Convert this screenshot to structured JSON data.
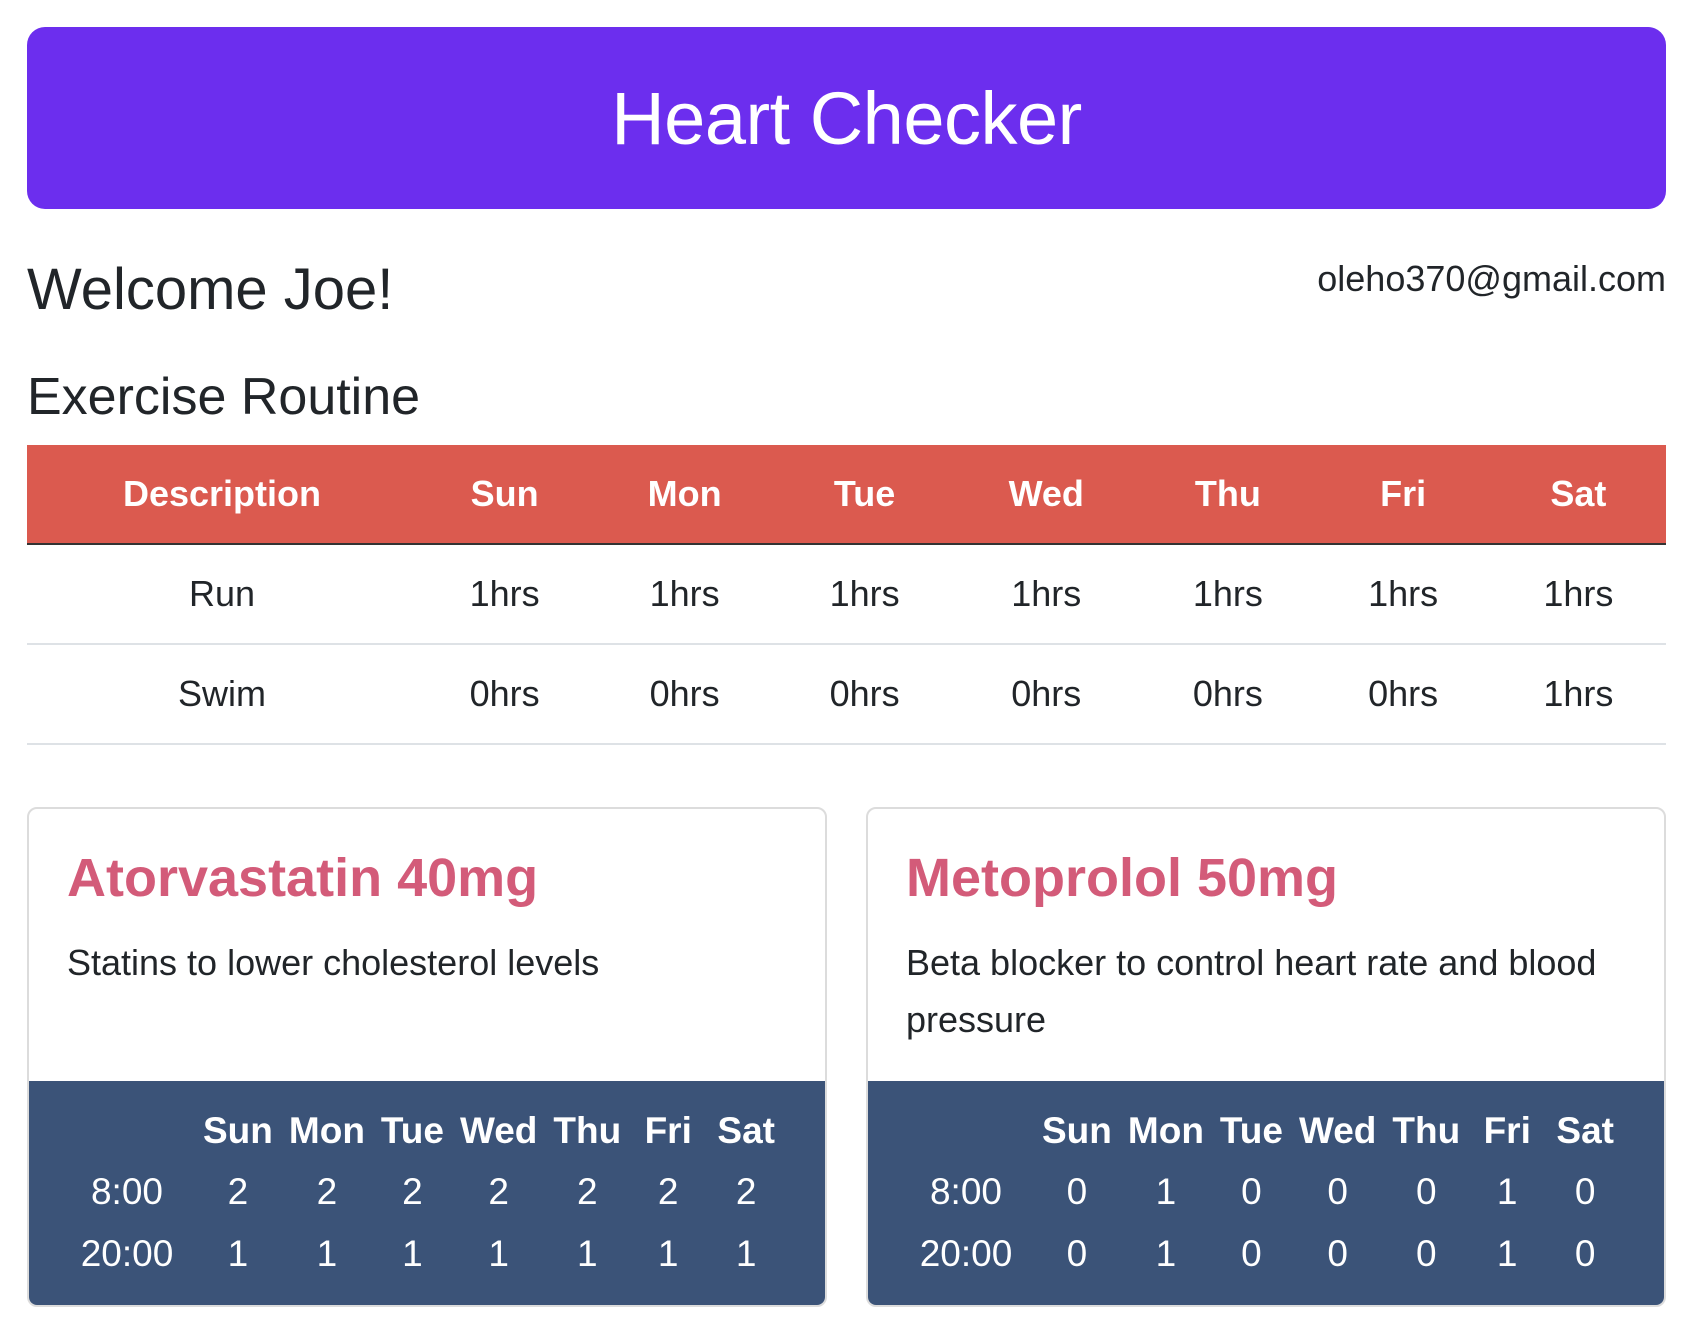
{
  "header": {
    "title": "Heart Checker"
  },
  "user": {
    "welcome": "Welcome Joe!",
    "email": "oleho370@gmail.com"
  },
  "exercise": {
    "title": "Exercise Routine",
    "columns": [
      "Description",
      "Sun",
      "Mon",
      "Tue",
      "Wed",
      "Thu",
      "Fri",
      "Sat"
    ],
    "rows": [
      [
        "Run",
        "1hrs",
        "1hrs",
        "1hrs",
        "1hrs",
        "1hrs",
        "1hrs",
        "1hrs"
      ],
      [
        "Swim",
        "0hrs",
        "0hrs",
        "0hrs",
        "0hrs",
        "0hrs",
        "0hrs",
        "1hrs"
      ]
    ]
  },
  "medications": [
    {
      "name": "Atorvastatin 40mg",
      "description": "Statins to lower cholesterol levels",
      "days": [
        "Sun",
        "Mon",
        "Tue",
        "Wed",
        "Thu",
        "Fri",
        "Sat"
      ],
      "schedule": [
        {
          "time": "8:00",
          "doses": [
            "2",
            "2",
            "2",
            "2",
            "2",
            "2",
            "2"
          ]
        },
        {
          "time": "20:00",
          "doses": [
            "1",
            "1",
            "1",
            "1",
            "1",
            "1",
            "1"
          ]
        }
      ]
    },
    {
      "name": "Metoprolol 50mg",
      "description": "Beta blocker to control heart rate and blood pressure",
      "days": [
        "Sun",
        "Mon",
        "Tue",
        "Wed",
        "Thu",
        "Fri",
        "Sat"
      ],
      "schedule": [
        {
          "time": "8:00",
          "doses": [
            "0",
            "1",
            "0",
            "0",
            "0",
            "1",
            "0"
          ]
        },
        {
          "time": "20:00",
          "doses": [
            "0",
            "1",
            "0",
            "0",
            "0",
            "1",
            "0"
          ]
        }
      ]
    }
  ],
  "colors": {
    "banner": "#6c2eee",
    "table_header": "#db5a4f",
    "card_title": "#d35b79",
    "card_footer": "#3b5378"
  }
}
